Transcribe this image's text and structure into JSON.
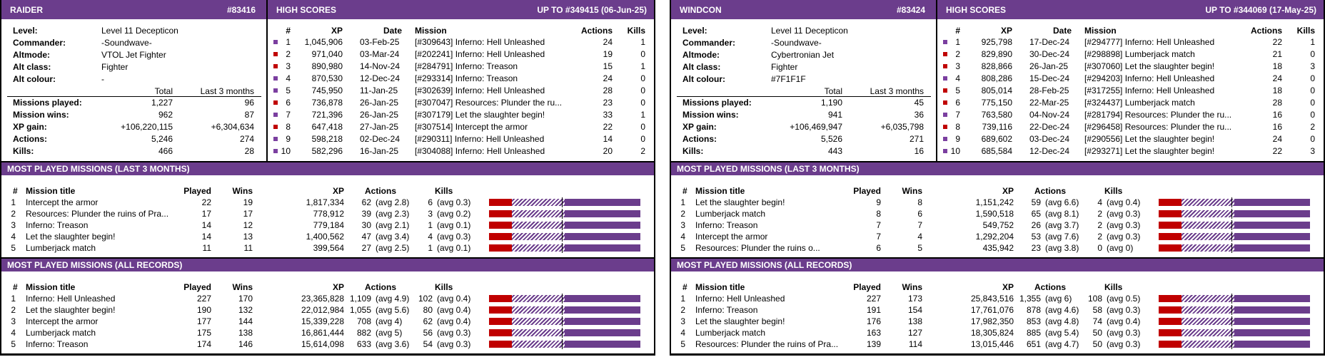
{
  "panels": [
    {
      "name": "RAIDER",
      "id": "#83416",
      "high_scores_title": "HIGH SCORES",
      "high_scores_range": "UP TO #349415 (06-Jun-25)",
      "profile": [
        [
          "Level:",
          "Level 11 Decepticon"
        ],
        [
          "Commander:",
          "-Soundwave-"
        ],
        [
          "Altmode:",
          "VTOL Jet Fighter"
        ],
        [
          "Alt class:",
          "Fighter"
        ],
        [
          "Alt colour:",
          "-"
        ]
      ],
      "stats_header": [
        "Total",
        "Last 3 months"
      ],
      "stats": [
        [
          "Missions played:",
          "1,227",
          "96"
        ],
        [
          "Mission wins:",
          "962",
          "87"
        ],
        [
          "XP gain:",
          "+106,220,115",
          "+6,304,634"
        ],
        [
          "Actions:",
          "5,246",
          "274"
        ],
        [
          "Kills:",
          "466",
          "28"
        ]
      ],
      "hs_header": [
        "#",
        "XP",
        "Date",
        "Mission",
        "Actions",
        "Kills"
      ],
      "high_scores": [
        {
          "marker_color": "#7b3fa0",
          "cells": [
            "1",
            "1,045,906",
            "03-Feb-25",
            "[#309643] Inferno: Hell Unleashed",
            "24",
            "1"
          ]
        },
        {
          "marker_color": "#c00000",
          "cells": [
            "2",
            "971,040",
            "03-Mar-24",
            "[#202241] Inferno: Hell Unleashed",
            "19",
            "0"
          ]
        },
        {
          "marker_color": "#c00000",
          "cells": [
            "3",
            "890,980",
            "14-Nov-24",
            "[#284791] Inferno: Treason",
            "15",
            "1"
          ]
        },
        {
          "marker_color": "#7b3fa0",
          "cells": [
            "4",
            "870,530",
            "12-Dec-24",
            "[#293314] Inferno: Treason",
            "24",
            "0"
          ]
        },
        {
          "marker_color": "#7b3fa0",
          "cells": [
            "5",
            "745,950",
            "11-Jan-25",
            "[#302639] Inferno: Hell Unleashed",
            "28",
            "0"
          ]
        },
        {
          "marker_color": "#c00000",
          "cells": [
            "6",
            "736,878",
            "26-Jan-25",
            "[#307047] Resources: Plunder the ru...",
            "23",
            "0"
          ]
        },
        {
          "marker_color": "#7b3fa0",
          "cells": [
            "7",
            "721,396",
            "26-Jan-25",
            "[#307179] Let the slaughter begin!",
            "33",
            "1"
          ]
        },
        {
          "marker_color": "#c00000",
          "cells": [
            "8",
            "647,418",
            "27-Jan-25",
            "[#307514] Intercept the armor",
            "22",
            "0"
          ]
        },
        {
          "marker_color": "#7b3fa0",
          "cells": [
            "9",
            "598,218",
            "02-Dec-24",
            "[#290311] Inferno: Hell Unleashed",
            "14",
            "0"
          ]
        },
        {
          "marker_color": "#7b3fa0",
          "cells": [
            "10",
            "582,296",
            "16-Jan-25",
            "[#304088] Inferno: Hell Unleashed",
            "20",
            "2"
          ]
        }
      ],
      "sections": [
        {
          "title": "MOST PLAYED MISSIONS (LAST 3 MONTHS)",
          "header": [
            "#",
            "Mission title",
            "Played",
            "Wins",
            "XP",
            "Actions",
            "Kills"
          ],
          "rows": [
            [
              "1",
              "Intercept the armor",
              "22",
              "19",
              "1,817,334",
              "62",
              "(avg 2.8)",
              "6",
              "(avg 0.3)"
            ],
            [
              "2",
              "Resources: Plunder the ruins of Pra...",
              "17",
              "17",
              "778,912",
              "39",
              "(avg 2.3)",
              "3",
              "(avg 0.2)"
            ],
            [
              "3",
              "Inferno: Treason",
              "14",
              "12",
              "779,184",
              "30",
              "(avg 2.1)",
              "1",
              "(avg 0.1)"
            ],
            [
              "4",
              "Let the slaughter begin!",
              "14",
              "13",
              "1,400,562",
              "47",
              "(avg 3.4)",
              "4",
              "(avg 0.3)"
            ],
            [
              "5",
              "Lumberjack match",
              "11",
              "11",
              "399,564",
              "27",
              "(avg 2.5)",
              "1",
              "(avg 0.1)"
            ]
          ]
        },
        {
          "title": "MOST PLAYED MISSIONS (ALL RECORDS)",
          "header": [
            "#",
            "Mission title",
            "Played",
            "Wins",
            "XP",
            "Actions",
            "Kills"
          ],
          "rows": [
            [
              "1",
              "Inferno: Hell Unleashed",
              "227",
              "170",
              "23,365,828",
              "1,109",
              "(avg 4.9)",
              "102",
              "(avg 0.4)"
            ],
            [
              "2",
              "Let the slaughter begin!",
              "190",
              "132",
              "22,012,984",
              "1,055",
              "(avg 5.6)",
              "80",
              "(avg 0.4)"
            ],
            [
              "3",
              "Intercept the armor",
              "177",
              "144",
              "15,339,228",
              "708",
              "(avg 4)",
              "62",
              "(avg 0.4)"
            ],
            [
              "4",
              "Lumberjack match",
              "175",
              "138",
              "16,861,444",
              "882",
              "(avg 5)",
              "56",
              "(avg 0.3)"
            ],
            [
              "5",
              "Inferno: Treason",
              "174",
              "146",
              "15,614,098",
              "633",
              "(avg 3.6)",
              "54",
              "(avg 0.3)"
            ]
          ]
        }
      ]
    },
    {
      "name": "WINDCON",
      "id": "#83424",
      "high_scores_title": "HIGH SCORES",
      "high_scores_range": "UP TO #344069 (17-May-25)",
      "profile": [
        [
          "Level:",
          "Level 11 Decepticon"
        ],
        [
          "Commander:",
          "-Soundwave-"
        ],
        [
          "Altmode:",
          "Cybertronian Jet"
        ],
        [
          "Alt class:",
          "Fighter"
        ],
        [
          "Alt colour:",
          "#7F1F1F"
        ]
      ],
      "stats_header": [
        "Total",
        "Last 3 months"
      ],
      "stats": [
        [
          "Missions played:",
          "1,190",
          "45"
        ],
        [
          "Mission wins:",
          "941",
          "36"
        ],
        [
          "XP gain:",
          "+106,469,947",
          "+6,035,798"
        ],
        [
          "Actions:",
          "5,526",
          "271"
        ],
        [
          "Kills:",
          "443",
          "16"
        ]
      ],
      "hs_header": [
        "#",
        "XP",
        "Date",
        "Mission",
        "Actions",
        "Kills"
      ],
      "high_scores": [
        {
          "marker_color": "#7b3fa0",
          "cells": [
            "1",
            "925,798",
            "17-Dec-24",
            "[#294777] Inferno: Hell Unleashed",
            "22",
            "1"
          ]
        },
        {
          "marker_color": "#c00000",
          "cells": [
            "2",
            "829,890",
            "30-Dec-24",
            "[#298898] Lumberjack match",
            "21",
            "0"
          ]
        },
        {
          "marker_color": "#c00000",
          "cells": [
            "3",
            "828,866",
            "26-Jan-25",
            "[#307060] Let the slaughter begin!",
            "18",
            "3"
          ]
        },
        {
          "marker_color": "#7b3fa0",
          "cells": [
            "4",
            "808,286",
            "15-Dec-24",
            "[#294203] Inferno: Hell Unleashed",
            "24",
            "0"
          ]
        },
        {
          "marker_color": "#c00000",
          "cells": [
            "5",
            "805,014",
            "28-Feb-25",
            "[#317255] Inferno: Hell Unleashed",
            "18",
            "0"
          ]
        },
        {
          "marker_color": "#c00000",
          "cells": [
            "6",
            "775,150",
            "22-Mar-25",
            "[#324437] Lumberjack match",
            "28",
            "0"
          ]
        },
        {
          "marker_color": "#7b3fa0",
          "cells": [
            "7",
            "763,580",
            "04-Nov-24",
            "[#281794] Resources: Plunder the ru...",
            "16",
            "0"
          ]
        },
        {
          "marker_color": "#c00000",
          "cells": [
            "8",
            "739,116",
            "22-Dec-24",
            "[#296458] Resources: Plunder the ru...",
            "16",
            "2"
          ]
        },
        {
          "marker_color": "#7b3fa0",
          "cells": [
            "9",
            "689,602",
            "03-Dec-24",
            "[#290556] Let the slaughter begin!",
            "24",
            "0"
          ]
        },
        {
          "marker_color": "#7b3fa0",
          "cells": [
            "10",
            "685,584",
            "12-Dec-24",
            "[#293271] Let the slaughter begin!",
            "22",
            "3"
          ]
        }
      ],
      "sections": [
        {
          "title": "MOST PLAYED MISSIONS (LAST 3 MONTHS)",
          "header": [
            "#",
            "Mission title",
            "Played",
            "Wins",
            "XP",
            "Actions",
            "Kills"
          ],
          "rows": [
            [
              "1",
              "Let the slaughter begin!",
              "9",
              "8",
              "1,151,242",
              "59",
              "(avg 6.6)",
              "4",
              "(avg 0.4)"
            ],
            [
              "2",
              "Lumberjack match",
              "8",
              "6",
              "1,590,518",
              "65",
              "(avg 8.1)",
              "2",
              "(avg 0.3)"
            ],
            [
              "3",
              "Inferno: Treason",
              "7",
              "7",
              "549,752",
              "26",
              "(avg 3.7)",
              "2",
              "(avg 0.3)"
            ],
            [
              "4",
              "Intercept the armor",
              "7",
              "4",
              "1,292,204",
              "53",
              "(avg 7.6)",
              "2",
              "(avg 0.3)"
            ],
            [
              "5",
              "Resources: Plunder the ruins o...",
              "6",
              "5",
              "435,942",
              "23",
              "(avg 3.8)",
              "0",
              "(avg 0)"
            ]
          ]
        },
        {
          "title": "MOST PLAYED MISSIONS (ALL RECORDS)",
          "header": [
            "#",
            "Mission title",
            "Played",
            "Wins",
            "XP",
            "Actions",
            "Kills"
          ],
          "rows": [
            [
              "1",
              "Inferno: Hell Unleashed",
              "227",
              "173",
              "25,843,516",
              "1,355",
              "(avg 6)",
              "108",
              "(avg 0.5)"
            ],
            [
              "2",
              "Inferno: Treason",
              "191",
              "154",
              "17,761,076",
              "878",
              "(avg 4.6)",
              "58",
              "(avg 0.3)"
            ],
            [
              "3",
              "Let the slaughter begin!",
              "176",
              "138",
              "17,982,350",
              "853",
              "(avg 4.8)",
              "74",
              "(avg 0.4)"
            ],
            [
              "4",
              "Lumberjack match",
              "163",
              "127",
              "18,305,824",
              "885",
              "(avg 5.4)",
              "50",
              "(avg 0.3)"
            ],
            [
              "5",
              "Resources: Plunder the ruins of Pra...",
              "139",
              "114",
              "13,015,446",
              "651",
              "(avg 4.7)",
              "50",
              "(avg 0.3)"
            ]
          ]
        }
      ]
    }
  ]
}
